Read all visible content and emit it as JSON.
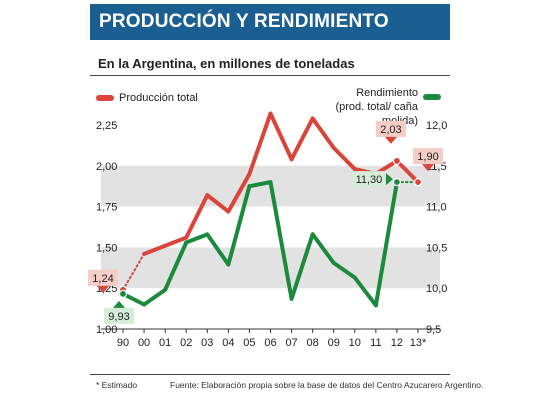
{
  "header": {
    "title": "PRODUCCIÓN Y RENDIMIENTO"
  },
  "subtitle": "En la Argentina, en millones de toneladas",
  "legend": {
    "production": "Producción total",
    "yield_line1": "Rendimiento",
    "yield_line2": "(prod. total/ caña molida)"
  },
  "footer": {
    "note": "* Estimado",
    "source": "Fuente: Elaboración propia sobre la base de datos del Centro Azucarero Argentino."
  },
  "colors": {
    "header": "#1b5f92",
    "production": "#d9453b",
    "yield": "#1c8a3c",
    "band": "#e2e2e2",
    "callout_red": "#f4cdc6",
    "callout_green": "#d6ecd8"
  },
  "chart_data": {
    "type": "line",
    "categories": [
      "90",
      "00",
      "01",
      "02",
      "03",
      "04",
      "05",
      "06",
      "07",
      "08",
      "09",
      "10",
      "11",
      "12",
      "13*"
    ],
    "left_axis": {
      "ylim": [
        1.0,
        2.25
      ],
      "ticks": [
        "1,00",
        "1,25",
        "1,50",
        "1,75",
        "2,00",
        "2,25"
      ]
    },
    "right_axis": {
      "ylim": [
        9.5,
        12.0
      ],
      "ticks": [
        "9,5",
        "10,0",
        "10,5",
        "11,0",
        "11,5",
        "12,0"
      ]
    },
    "grid_bands": true,
    "series": [
      {
        "name": "Producción total",
        "axis": "left",
        "values": [
          1.24,
          1.46,
          1.51,
          1.56,
          1.82,
          1.72,
          1.95,
          2.32,
          2.04,
          2.29,
          2.11,
          1.98,
          1.95,
          2.03,
          1.9
        ],
        "dotted_segment": [
          0,
          1
        ]
      },
      {
        "name": "Rendimiento",
        "axis": "right",
        "values": [
          9.93,
          9.8,
          9.98,
          10.56,
          10.66,
          10.29,
          11.25,
          11.3,
          9.87,
          10.66,
          10.31,
          10.13,
          9.79,
          11.3,
          11.3
        ],
        "dotted_segment": [
          13,
          14
        ]
      }
    ],
    "annotations": [
      {
        "series": "Producción total",
        "index": 0,
        "text": "1,24"
      },
      {
        "series": "Producción total",
        "index": 13,
        "text": "2,03"
      },
      {
        "series": "Producción total",
        "index": 14,
        "text": "1,90"
      },
      {
        "series": "Rendimiento",
        "index": 0,
        "text": "9,93"
      },
      {
        "series": "Rendimiento",
        "index": 13,
        "text": "11,30"
      }
    ]
  }
}
